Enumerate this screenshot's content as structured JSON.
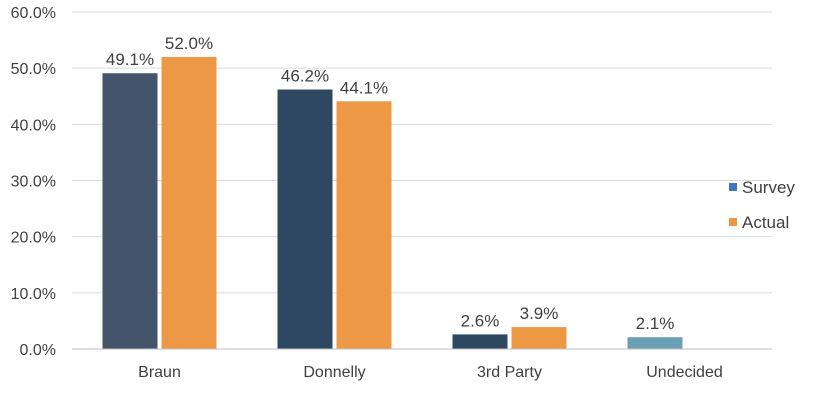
{
  "chart_data": {
    "type": "bar",
    "categories": [
      "Braun",
      "Donnelly",
      "3rd Party",
      "Undecided"
    ],
    "series": [
      {
        "name": "Survey",
        "values": [
          49.1,
          46.2,
          2.6,
          2.1
        ]
      },
      {
        "name": "Actual",
        "values": [
          52.0,
          44.1,
          3.9,
          null
        ]
      }
    ],
    "value_labels": [
      [
        "49.1%",
        "46.2%",
        "2.6%",
        "2.1%"
      ],
      [
        "52.0%",
        "44.1%",
        "3.9%",
        null
      ]
    ],
    "y_ticks": [
      "0.0%",
      "10.0%",
      "20.0%",
      "30.0%",
      "40.0%",
      "50.0%",
      "60.0%"
    ],
    "ylim": [
      0,
      60
    ],
    "grid": true,
    "legend_position": "right",
    "title": "",
    "xlabel": "",
    "ylabel": ""
  },
  "colors": {
    "survey_bars": [
      "#44546a",
      "#2e4861",
      "#2e4861",
      "#6a9fb5"
    ],
    "survey_legend": "#4472c4",
    "actual": "#ed9845"
  }
}
